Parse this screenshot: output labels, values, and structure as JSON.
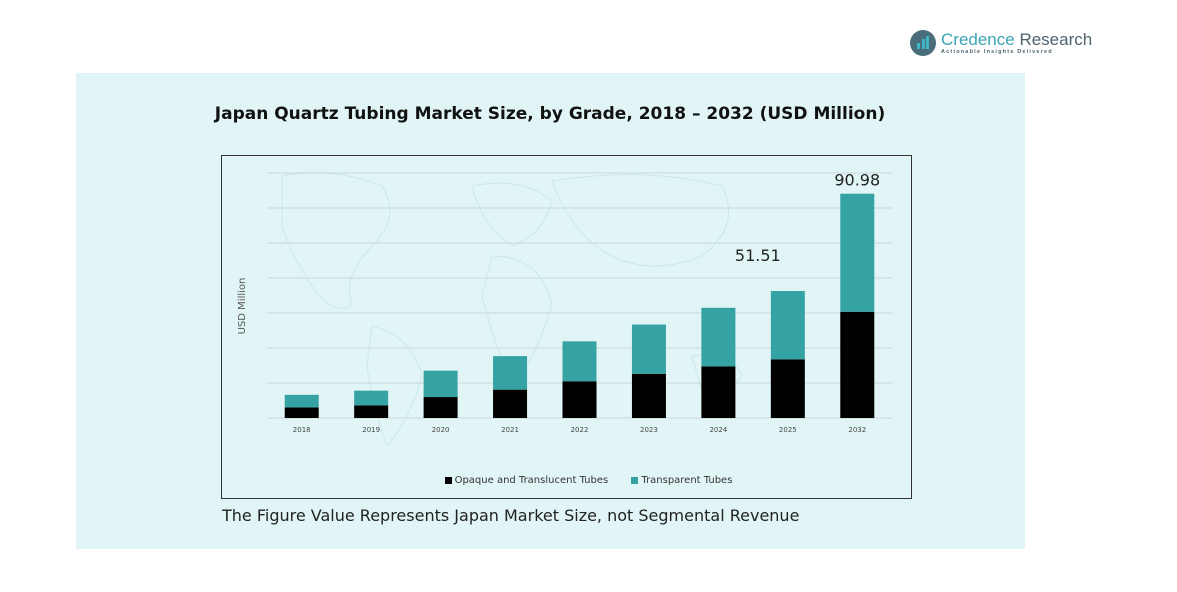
{
  "brand": {
    "name_part1": "Credence",
    "name_part2": " Research",
    "tagline": "Actionable Insights Delivered"
  },
  "colors": {
    "panel_bg": "#e2f5f6",
    "series_opaque": "#000000",
    "series_transparent": "#35a3a3"
  },
  "footnote": "The Figure Value Represents Japan Market Size, not Segmental Revenue",
  "chart_data": {
    "type": "bar",
    "stacked": true,
    "title": "Japan Quartz Tubing Market Size, by Grade, 2018 – 2032 (USD Million)",
    "xlabel": "",
    "ylabel": "USD Million",
    "ylim": [
      0,
      100
    ],
    "grid": true,
    "legend_position": "bottom",
    "categories": [
      "2018",
      "2019",
      "2020",
      "2021",
      "2022",
      "2023",
      "2024",
      "2025",
      "2032"
    ],
    "series": [
      {
        "name": "Opaque and Translucent Tubes",
        "color": "#000000",
        "values": [
          4.3,
          5.1,
          8.5,
          11.5,
          14.9,
          17.9,
          20.9,
          23.8,
          43.1
        ]
      },
      {
        "name": "Transparent Tubes",
        "color": "#35a3a3",
        "values": [
          5.1,
          6.0,
          10.7,
          13.6,
          16.2,
          20.0,
          23.8,
          27.71,
          47.88
        ]
      }
    ],
    "annotations": [
      {
        "category": "2025",
        "text": "51.51"
      },
      {
        "category": "2032",
        "text": "90.98"
      }
    ]
  }
}
